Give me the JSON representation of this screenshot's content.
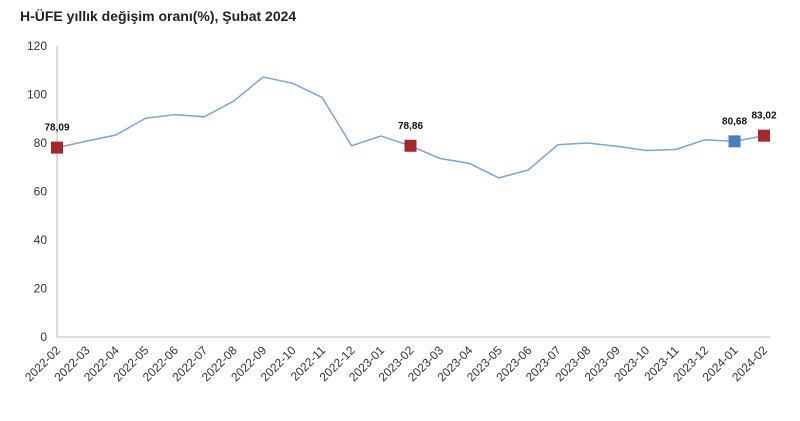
{
  "chart_data": {
    "type": "line",
    "title": "H-ÜFE yıllık değişim oranı(%), Şubat 2024",
    "xlabel": "",
    "ylabel": "",
    "ylim": [
      0,
      120
    ],
    "yticks": [
      0,
      20,
      40,
      60,
      80,
      100,
      120
    ],
    "grid": false,
    "categories": [
      "2022-02",
      "2022-03",
      "2022-04",
      "2022-05",
      "2022-06",
      "2022-07",
      "2022-08",
      "2022-09",
      "2022-10",
      "2022-11",
      "2022-12",
      "2023-01",
      "2023-02",
      "2023-03",
      "2023-04",
      "2023-05",
      "2023-06",
      "2023-07",
      "2023-08",
      "2023-09",
      "2023-10",
      "2023-11",
      "2023-12",
      "2024-01",
      "2024-02"
    ],
    "series": [
      {
        "name": "H-ÜFE",
        "color": "#7aa6d0",
        "values": [
          78.09,
          80.8,
          83.3,
          90.2,
          91.7,
          90.8,
          97.3,
          107.2,
          104.6,
          98.8,
          78.9,
          82.9,
          78.86,
          73.6,
          71.6,
          65.6,
          68.9,
          79.3,
          80.0,
          78.7,
          76.9,
          77.3,
          81.3,
          80.68,
          83.02
        ]
      }
    ],
    "markers": [
      {
        "index": 0,
        "label": "78,09",
        "color": "#a3292c"
      },
      {
        "index": 12,
        "label": "78,86",
        "color": "#a3292c"
      },
      {
        "index": 23,
        "label": "80,68",
        "color": "#4a7fbf"
      },
      {
        "index": 24,
        "label": "83,02",
        "color": "#a3292c"
      }
    ]
  }
}
